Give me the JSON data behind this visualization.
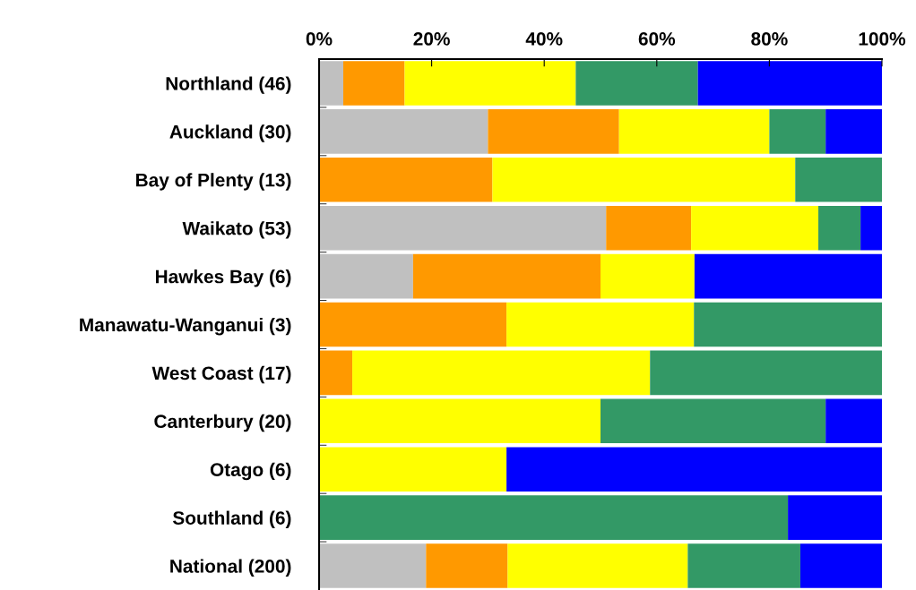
{
  "chart_data": {
    "type": "bar",
    "orientation": "horizontal",
    "stacked": true,
    "categories": [
      "Northland (46)",
      "Auckland (30)",
      "Bay of Plenty (13)",
      "Waikato (53)",
      "Hawkes Bay (6)",
      "Manawatu-Wanganui (3)",
      "West Coast (17)",
      "Canterbury (20)",
      "Otago (6)",
      "Southland (6)",
      "National (200)"
    ],
    "series": [
      {
        "color": "#c0c0c0",
        "values": [
          4.3,
          30,
          0,
          51,
          16.7,
          0,
          0,
          0,
          0,
          0,
          19
        ]
      },
      {
        "color": "#ff9900",
        "values": [
          10.9,
          23.3,
          30.8,
          15.1,
          33.3,
          33.3,
          5.9,
          0,
          0,
          0,
          14.5
        ]
      },
      {
        "color": "#ffff00",
        "values": [
          30.4,
          26.7,
          53.8,
          22.6,
          16.7,
          33.3,
          52.9,
          50,
          33.3,
          0,
          32
        ]
      },
      {
        "color": "#339966",
        "values": [
          21.7,
          10,
          15.4,
          7.5,
          0,
          33.4,
          41.2,
          40,
          0,
          83.3,
          20
        ]
      },
      {
        "color": "#0000ff",
        "values": [
          32.7,
          10,
          0,
          3.8,
          33.3,
          0,
          0,
          10,
          66.7,
          16.7,
          14.5
        ]
      }
    ],
    "xlim": [
      0,
      100
    ],
    "xticks": [
      {
        "value": 0,
        "label": "0%"
      },
      {
        "value": 20,
        "label": "20%"
      },
      {
        "value": 40,
        "label": "40%"
      },
      {
        "value": 60,
        "label": "60%"
      },
      {
        "value": 80,
        "label": "80%"
      },
      {
        "value": 100,
        "label": "100%"
      }
    ],
    "grid": false,
    "legend": false
  }
}
